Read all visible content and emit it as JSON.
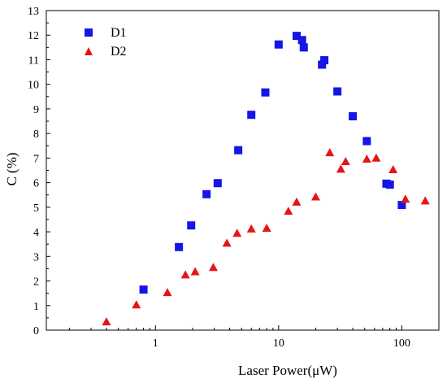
{
  "chart_data": {
    "type": "scatter",
    "title": "",
    "xlabel": "Laser Power(μW)",
    "ylabel": "C (%)",
    "xscale": "log",
    "xlim": [
      0.13,
      200
    ],
    "ylim": [
      0,
      13
    ],
    "xticks": [
      1,
      10,
      100
    ],
    "xtick_labels": [
      "1",
      "10",
      "100"
    ],
    "yticks": [
      0,
      1,
      2,
      3,
      4,
      5,
      6,
      7,
      8,
      9,
      10,
      11,
      12,
      13
    ],
    "ytick_labels": [
      "0",
      "1",
      "2",
      "3",
      "4",
      "5",
      "6",
      "7",
      "8",
      "9",
      "10",
      "11",
      "12",
      "13"
    ],
    "grid": false,
    "legend_position": "top-left",
    "series": [
      {
        "name": "D1",
        "marker": "square",
        "color": "#1515e6",
        "x": [
          0.8,
          1.55,
          1.95,
          2.6,
          3.2,
          4.7,
          6.0,
          7.8,
          10.0,
          14.0,
          15.5,
          16.0,
          22.5,
          23.5,
          30.0,
          40.0,
          52.0,
          75.0,
          80.0,
          100.0
        ],
        "y": [
          1.65,
          3.38,
          4.26,
          5.53,
          5.98,
          7.32,
          8.76,
          9.67,
          11.62,
          11.97,
          11.8,
          11.5,
          10.8,
          10.98,
          9.71,
          8.7,
          7.69,
          5.96,
          5.92,
          5.09
        ]
      },
      {
        "name": "D2",
        "marker": "triangle",
        "color": "#e61515",
        "x": [
          0.4,
          0.7,
          1.25,
          1.75,
          2.1,
          2.95,
          3.8,
          4.6,
          6.0,
          8.0,
          12.0,
          14.0,
          20.0,
          26.0,
          32.0,
          35.0,
          52.0,
          62.0,
          85.0,
          107.0,
          155.0
        ],
        "y": [
          0.36,
          1.05,
          1.55,
          2.27,
          2.4,
          2.57,
          3.56,
          3.96,
          4.14,
          4.17,
          4.86,
          5.23,
          5.44,
          7.24,
          6.57,
          6.88,
          6.98,
          7.02,
          6.55,
          5.35,
          5.28
        ]
      }
    ]
  }
}
